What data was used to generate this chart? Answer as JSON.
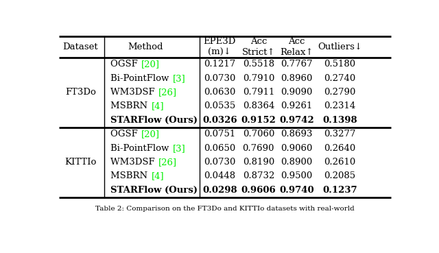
{
  "caption": "Table 2: Comparison on the FT3Do and KITTIo datasets with real-world",
  "col_headers": [
    "Dataset",
    "Method",
    "EPE3D\n(m)↓",
    "Acc\nStrict↑",
    "Acc\nRelax↑",
    "Outliers↓"
  ],
  "datasets": [
    "FT3Do",
    "KITTIo"
  ],
  "rows": {
    "FT3Do": [
      [
        [
          "OGSF ",
          "black",
          "normal"
        ],
        [
          " [20]",
          "#00ee00",
          "normal"
        ],
        "0.1217",
        "0.5518",
        "0.7767",
        "0.5180",
        false
      ],
      [
        [
          "Bi-PointFlow ",
          "black",
          "normal"
        ],
        [
          " [3]",
          "#00ee00",
          "normal"
        ],
        "0.0730",
        "0.7910",
        "0.8960",
        "0.2740",
        false
      ],
      [
        [
          "WM3DSF ",
          "black",
          "normal"
        ],
        [
          " [26]",
          "#00ee00",
          "normal"
        ],
        "0.0630",
        "0.7911",
        "0.9090",
        "0.2790",
        false
      ],
      [
        [
          "MSBRN ",
          "black",
          "normal"
        ],
        [
          " [4]",
          "#00ee00",
          "normal"
        ],
        "0.0535",
        "0.8364",
        "0.9261",
        "0.2314",
        false
      ],
      [
        [
          "STARFlow (Ours)",
          "black",
          "bold"
        ],
        null,
        "0.0326",
        "0.9152",
        "0.9742",
        "0.1398",
        true
      ]
    ],
    "KITTIo": [
      [
        [
          "OGSF ",
          "black",
          "normal"
        ],
        [
          " [20]",
          "#00ee00",
          "normal"
        ],
        "0.0751",
        "0.7060",
        "0.8693",
        "0.3277",
        false
      ],
      [
        [
          "Bi-PointFlow ",
          "black",
          "normal"
        ],
        [
          " [3]",
          "#00ee00",
          "normal"
        ],
        "0.0650",
        "0.7690",
        "0.9060",
        "0.2640",
        false
      ],
      [
        [
          "WM3DSF ",
          "black",
          "normal"
        ],
        [
          " [26]",
          "#00ee00",
          "normal"
        ],
        "0.0730",
        "0.8190",
        "0.8900",
        "0.2610",
        false
      ],
      [
        [
          "MSBRN ",
          "black",
          "normal"
        ],
        [
          " [4]",
          "#00ee00",
          "normal"
        ],
        "0.0448",
        "0.8732",
        "0.9500",
        "0.2085",
        false
      ],
      [
        [
          "STARFlow (Ours)",
          "black",
          "bold"
        ],
        null,
        "0.0298",
        "0.9606",
        "0.9740",
        "0.1237",
        true
      ]
    ]
  },
  "ref_color": "#00ee00",
  "bg_color": "#ffffff",
  "text_color": "#000000",
  "font_size": 9.5,
  "header_font_size": 9.5
}
